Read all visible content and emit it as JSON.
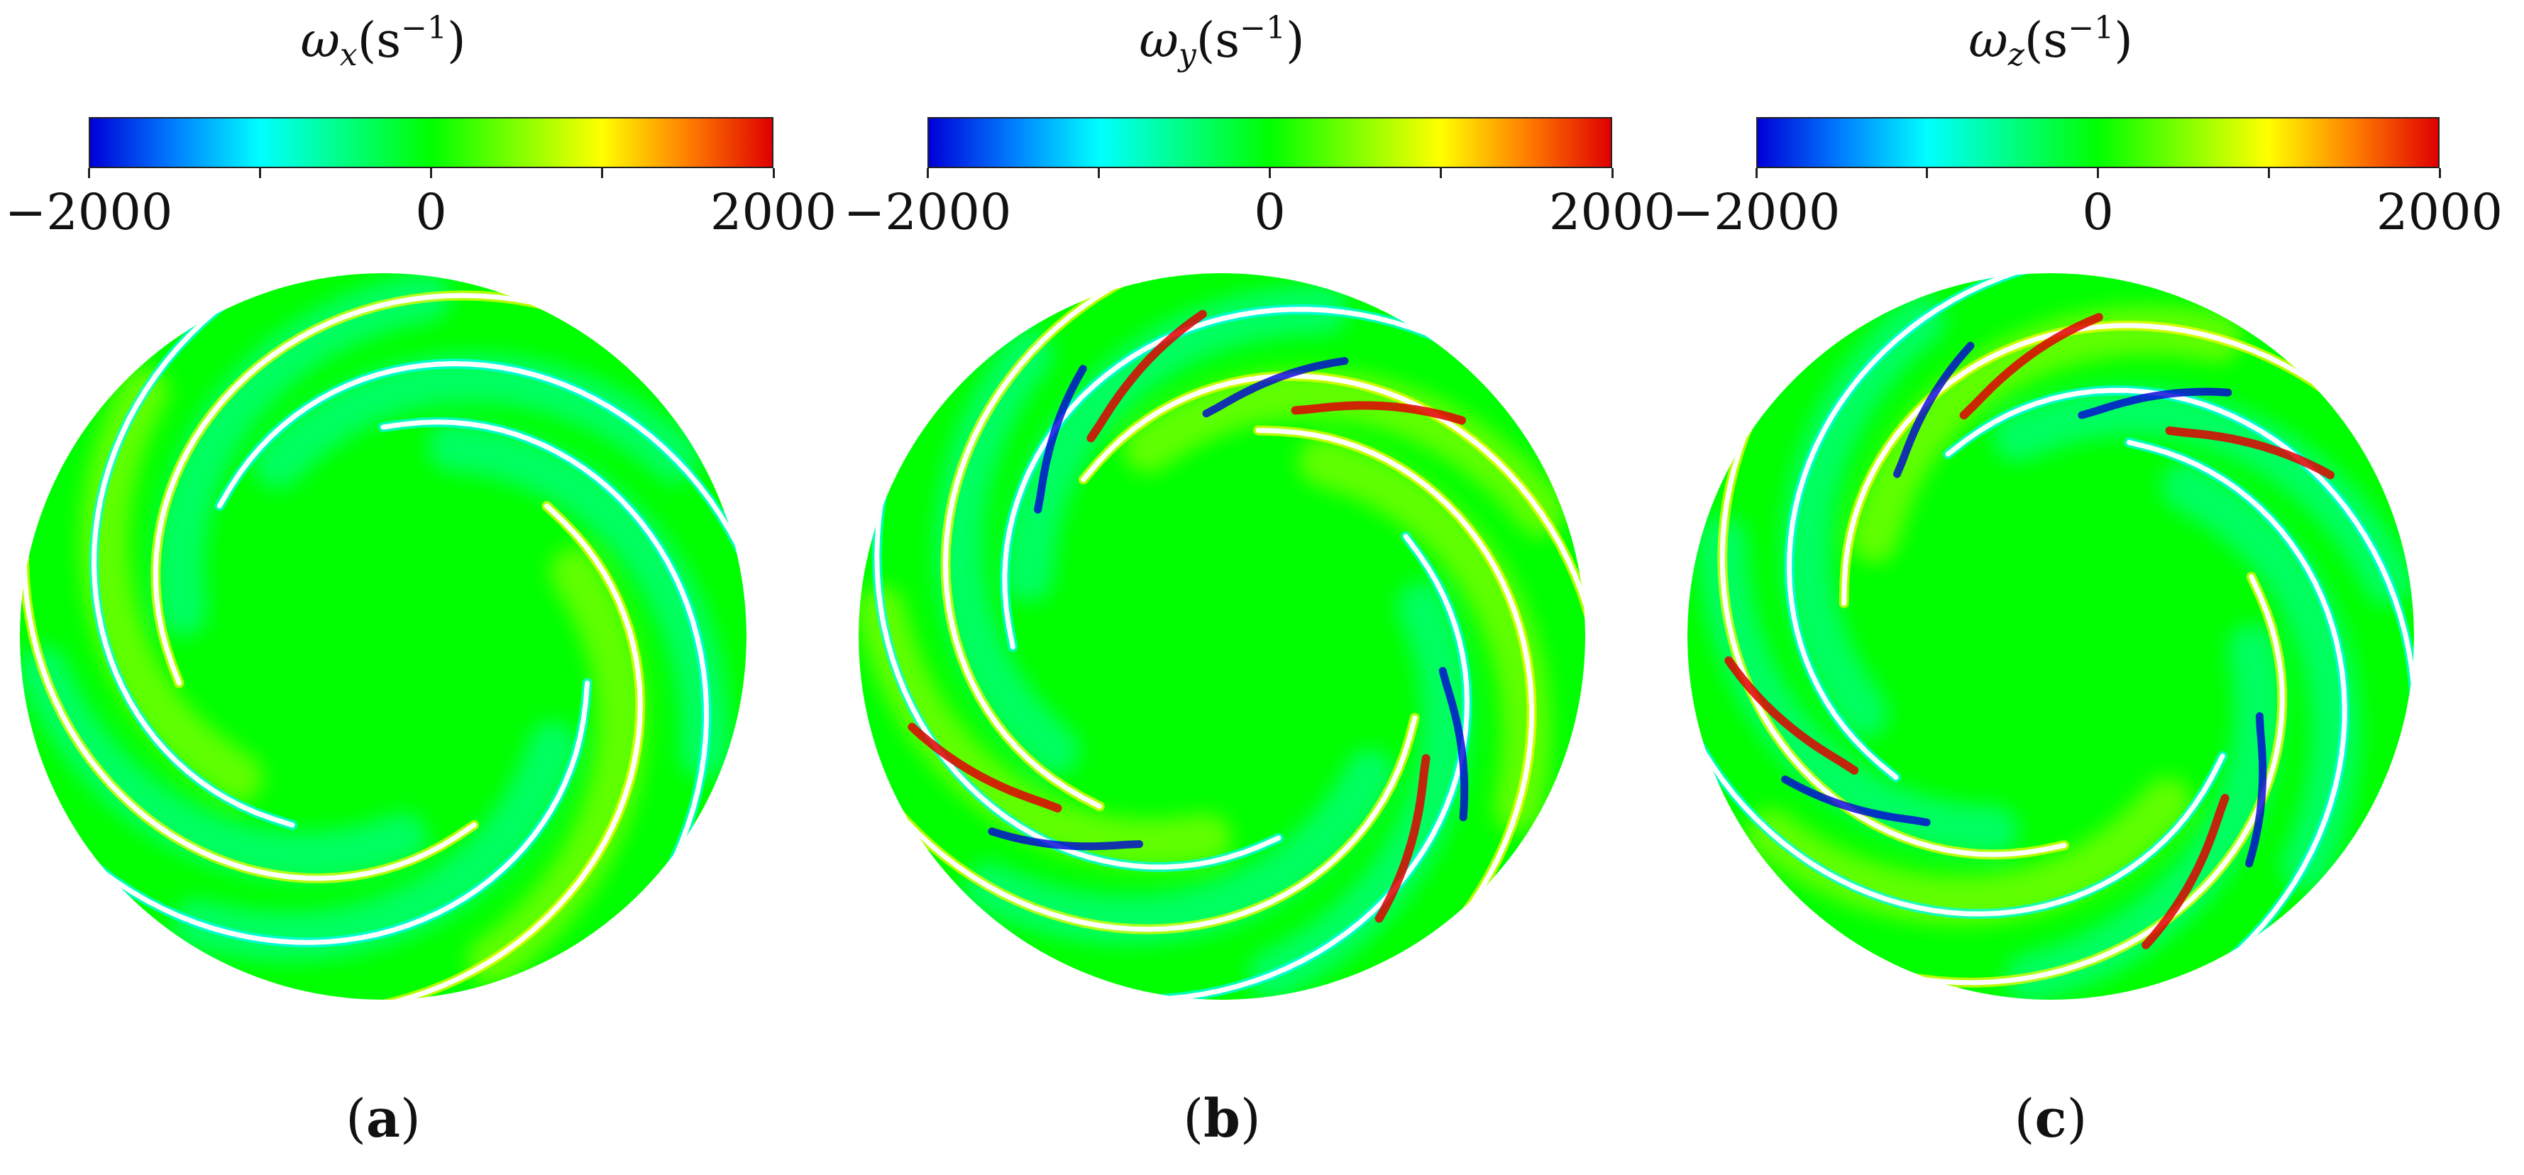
{
  "colormap": [
    "#0000d8",
    "#0080ff",
    "#00ffff",
    "#00ff80",
    "#00ff00",
    "#80ff00",
    "#ffff00",
    "#ff8000",
    "#e00000"
  ],
  "panels": [
    {
      "symbol": "ω",
      "subscript": "x",
      "unit": "(s",
      "exponent": "−1",
      "unit_close": ")",
      "tick_labels": [
        "−2000",
        "0",
        "2000"
      ],
      "label_open": "(",
      "label": "a",
      "label_close": ")"
    },
    {
      "symbol": "ω",
      "subscript": "y",
      "unit": "(s",
      "exponent": "−1",
      "unit_close": ")",
      "tick_labels": [
        "−2000",
        "0",
        "2000"
      ],
      "label_open": "(",
      "label": "b",
      "label_close": ")"
    },
    {
      "symbol": "ω",
      "subscript": "z",
      "unit": "(s",
      "exponent": "−1",
      "unit_close": ")",
      "tick_labels": [
        "−2000",
        "0",
        "2000"
      ],
      "label_open": "(",
      "label": "c",
      "label_close": ")"
    }
  ]
}
